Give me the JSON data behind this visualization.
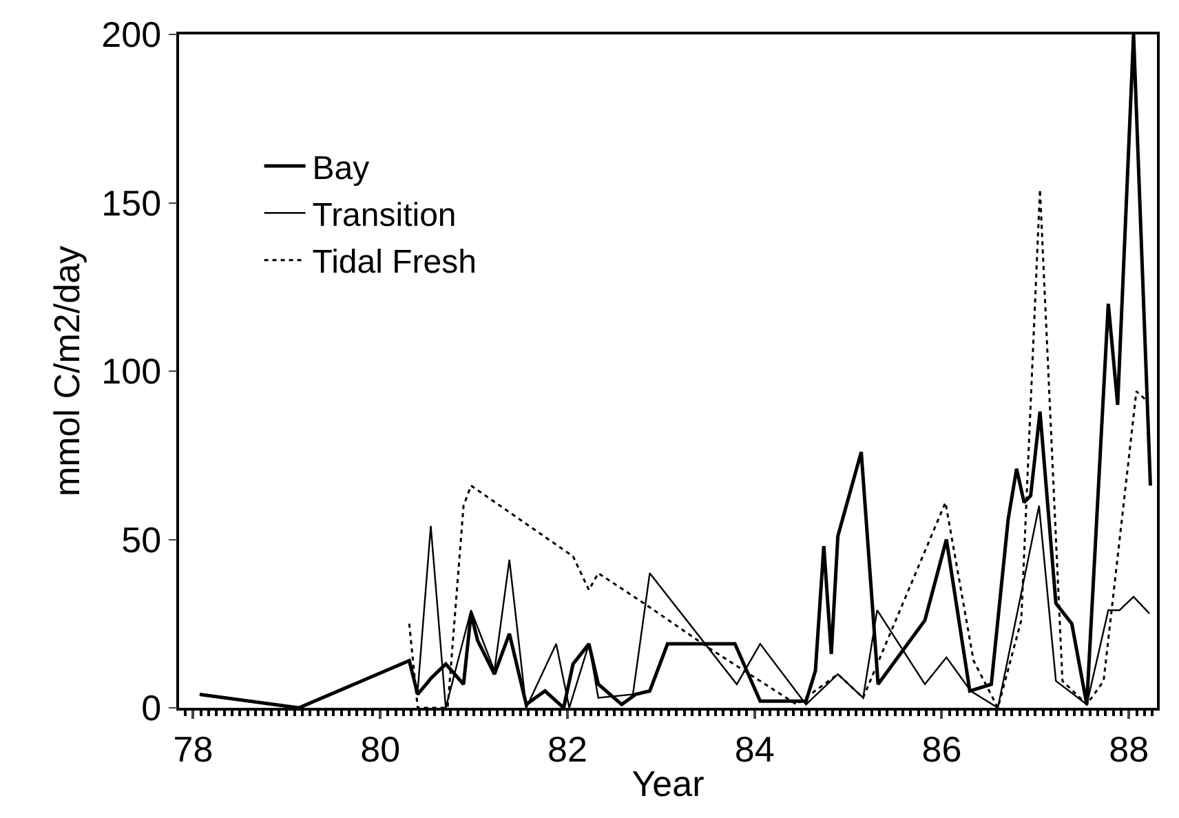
{
  "chart_data": {
    "type": "line",
    "xlabel": "Year",
    "ylabel": "mmol C/m2/day",
    "xlim": [
      77.85,
      88.3
    ],
    "xticks": [
      78,
      80,
      82,
      84,
      86,
      88
    ],
    "ylim": [
      0,
      200
    ],
    "yticks": [
      0,
      50,
      100,
      150,
      200
    ],
    "legend": "top left",
    "grid": false,
    "series": [
      {
        "name": "Bay",
        "color": "#000000",
        "line_style": "solid",
        "x": [
          78.07,
          79.13,
          80.31,
          80.4,
          80.55,
          80.7,
          80.89,
          80.97,
          81.04,
          81.22,
          81.38,
          81.56,
          81.76,
          81.96,
          82.06,
          82.23,
          82.33,
          82.58,
          82.73,
          82.88,
          83.07,
          83.79,
          84.06,
          84.55,
          84.65,
          84.74,
          84.82,
          84.89,
          85.14,
          85.32,
          85.82,
          86.05,
          86.3,
          86.53,
          86.71,
          86.8,
          86.88,
          86.95,
          87.05,
          87.22,
          87.39,
          87.55,
          87.78,
          87.88,
          88.05,
          88.23
        ],
        "values": [
          4,
          0,
          14,
          4,
          9,
          13,
          7,
          28,
          20,
          10,
          22,
          1,
          5,
          0,
          13,
          19,
          7,
          1,
          4,
          5,
          19,
          19,
          2,
          2,
          11,
          48,
          16,
          51,
          76,
          7,
          26,
          50,
          5,
          7,
          56,
          71,
          61,
          63,
          88,
          31,
          25,
          1,
          120,
          90,
          200,
          66
        ]
      },
      {
        "name": "Transition",
        "color": "#000000",
        "line_style": "solid",
        "x": [
          80.31,
          80.4,
          80.54,
          80.7,
          80.97,
          81.22,
          81.38,
          81.56,
          81.88,
          82.02,
          82.23,
          82.33,
          82.7,
          82.88,
          83.81,
          84.06,
          84.55,
          84.89,
          85.16,
          85.31,
          85.82,
          86.05,
          86.31,
          86.6,
          87.04,
          87.22,
          87.55,
          87.78,
          87.9,
          88.05,
          88.22
        ],
        "values": [
          14,
          5,
          54,
          0,
          29,
          11,
          44,
          0,
          19,
          0,
          19,
          3,
          4,
          40,
          7,
          19,
          1,
          10,
          3,
          29,
          7,
          15,
          5,
          0,
          60,
          8,
          1,
          29,
          29,
          33,
          28
        ]
      },
      {
        "name": "Tidal Fresh",
        "color": "#000000",
        "line_style": "dotted",
        "x": [
          80.31,
          80.4,
          80.72,
          80.89,
          80.97,
          82.06,
          82.23,
          82.33,
          82.82,
          83.5,
          84.45,
          84.89,
          85.16,
          86.04,
          86.34,
          86.6,
          86.85,
          87.05,
          87.29,
          87.55,
          87.73,
          88.08,
          88.2
        ],
        "values": [
          25,
          0,
          0,
          60,
          66,
          45,
          35,
          40,
          31,
          18,
          1,
          10,
          3,
          61,
          14,
          0,
          26,
          154,
          8,
          1,
          8,
          94,
          91
        ]
      }
    ]
  }
}
